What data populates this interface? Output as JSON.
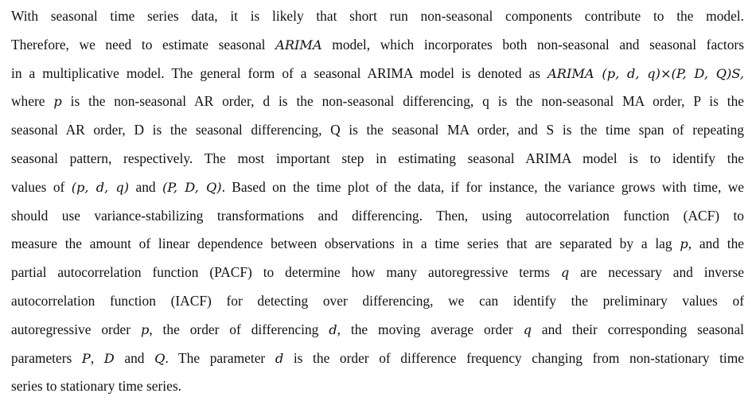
{
  "paragraph": {
    "lines": [
      [
        {
          "t": "text",
          "v": "With seasonal time series data, it is likely that short run non-seasonal components contribute to the model."
        }
      ],
      [
        {
          "t": "text",
          "v": "Therefore, we need to estimate seasonal "
        },
        {
          "t": "math",
          "v": "ARIMA"
        },
        {
          "t": "text",
          "v": " model, which incorporates both non-seasonal and seasonal factors"
        }
      ],
      [
        {
          "t": "text",
          "v": "in a multiplicative model. The general form of a seasonal ARIMA model is denoted as "
        },
        {
          "t": "math",
          "v": "ARIMA (p, d, q)×(P, D, Q)S,"
        }
      ],
      [
        {
          "t": "text",
          "v": "where "
        },
        {
          "t": "math",
          "v": "p"
        },
        {
          "t": "text",
          "v": " is the non-seasonal AR order, d is the non-seasonal differencing, q is the non-seasonal MA order, P is the"
        }
      ],
      [
        {
          "t": "text",
          "v": "seasonal AR order, D is the seasonal differencing, Q is the seasonal MA order, and S is the time span of repeating"
        }
      ],
      [
        {
          "t": "text",
          "v": "seasonal pattern, respectively. The most important step in estimating seasonal ARIMA model is to identify the"
        }
      ],
      [
        {
          "t": "text",
          "v": "values of "
        },
        {
          "t": "math",
          "v": "(p, d, q)"
        },
        {
          "t": "text",
          "v": " and "
        },
        {
          "t": "math",
          "v": "(P, D, Q)"
        },
        {
          "t": "text",
          "v": ". Based on the time plot of the data, if for instance, the variance grows with time, we"
        }
      ],
      [
        {
          "t": "text",
          "v": "should use variance-stabilizing transformations and differencing. Then, using autocorrelation function (ACF) to"
        }
      ],
      [
        {
          "t": "text",
          "v": "measure the amount of linear dependence between observations in a time series that are separated by a lag "
        },
        {
          "t": "math",
          "v": "p"
        },
        {
          "t": "text",
          "v": ", and the"
        }
      ],
      [
        {
          "t": "text",
          "v": "partial autocorrelation function (PACF) to determine how many autoregressive terms "
        },
        {
          "t": "math",
          "v": "q"
        },
        {
          "t": "text",
          "v": " are necessary and inverse"
        }
      ],
      [
        {
          "t": "text",
          "v": "autocorrelation function (IACF) for detecting over differencing, we can identify the preliminary values of"
        }
      ],
      [
        {
          "t": "text",
          "v": "autoregressive order "
        },
        {
          "t": "math",
          "v": "p"
        },
        {
          "t": "text",
          "v": ", the order of differencing "
        },
        {
          "t": "math",
          "v": "d"
        },
        {
          "t": "text",
          "v": ", the moving average order "
        },
        {
          "t": "math",
          "v": "q"
        },
        {
          "t": "text",
          "v": " and their corresponding seasonal"
        }
      ],
      [
        {
          "t": "text",
          "v": "parameters "
        },
        {
          "t": "math",
          "v": "P"
        },
        {
          "t": "text",
          "v": ", "
        },
        {
          "t": "math",
          "v": "D"
        },
        {
          "t": "text",
          "v": " and "
        },
        {
          "t": "math",
          "v": "Q"
        },
        {
          "t": "text",
          "v": ". The parameter "
        },
        {
          "t": "math",
          "v": "d"
        },
        {
          "t": "text",
          "v": " is the order of difference frequency changing from non-stationary time"
        }
      ],
      [
        {
          "t": "text",
          "v": "series to stationary time series."
        }
      ]
    ]
  }
}
